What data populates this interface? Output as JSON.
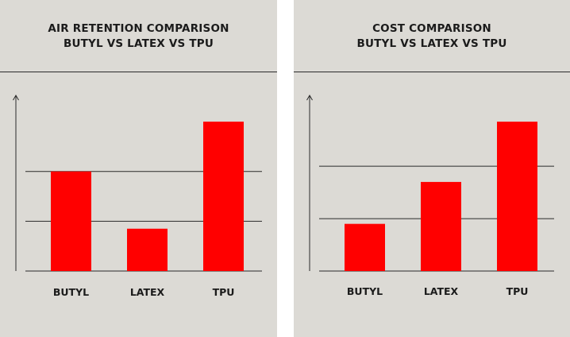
{
  "chart_data": [
    {
      "type": "bar",
      "title_line1": "AIR RETENTION COMPARISON",
      "title_line2": "BUTYL VS LATEX VS TPU",
      "categories": [
        "BUTYL",
        "LATEX",
        "TPU"
      ],
      "values": [
        2.0,
        0.85,
        3.0
      ],
      "ylim": [
        0,
        3.4
      ],
      "ygrid": [
        1,
        2
      ],
      "y_tick_labels": false,
      "grid": true,
      "bar_color": "#ff0000"
    },
    {
      "type": "bar",
      "title_line1": "COST COMPARISON",
      "title_line2": "BUTYL VS LATEX VS TPU",
      "categories": [
        "BUTYL",
        "LATEX",
        "TPU"
      ],
      "values": [
        0.9,
        1.7,
        2.85
      ],
      "ylim": [
        0,
        3.2
      ],
      "ygrid": [
        1,
        2
      ],
      "y_tick_labels": false,
      "grid": true,
      "bar_color": "#ff0000"
    }
  ]
}
